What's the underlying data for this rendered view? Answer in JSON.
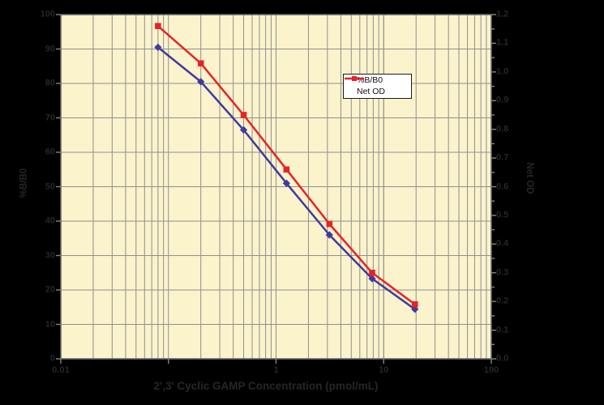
{
  "colors": {
    "page_bg": "#000000",
    "plot_bg": "#fbf3cc",
    "grid": "#8f8f8f",
    "plot_border": "#666666",
    "tick": "#858585",
    "axis_text": "#26262a",
    "legend_bg": "#ffffff",
    "legend_border": "#1a1a1a",
    "legend_text": "#111111"
  },
  "chart_data": {
    "type": "line",
    "xlabel": "2',3' Cyclic GAMP Concentration (pmol/mL)",
    "x_scale": "log",
    "x_range": [
      0.01,
      100
    ],
    "x_ticks": [
      {
        "value": 0.01,
        "label": "0.01"
      },
      {
        "value": 0.1,
        "label": ""
      },
      {
        "value": 1,
        "label": "1"
      },
      {
        "value": 10,
        "label": "10"
      },
      {
        "value": 100,
        "label": "100"
      }
    ],
    "left_axis": {
      "label": "%B/B0",
      "min": 0,
      "max": 100,
      "tick_step": 10,
      "tick_labels": [
        "0",
        "10",
        "20",
        "30",
        "40",
        "50",
        "60",
        "70",
        "80",
        "90",
        "100"
      ]
    },
    "right_axis": {
      "label": "Net OD",
      "min": 0,
      "max": 1.2,
      "tick_step": 0.1,
      "minor_tick_step": 0.05,
      "tick_labels": [
        "0.0",
        "0.1",
        "0.2",
        "0.3",
        "0.4",
        "0.5",
        "0.6",
        "0.7",
        "0.8",
        "0.9",
        "1.0",
        "1.1",
        "1.2"
      ]
    },
    "grid": "horizontal-major and vertical-log-minor",
    "legend_position": "inside top-center",
    "x": [
      0.08,
      0.2,
      0.5,
      1.25,
      3.13,
      7.81,
      19.5
    ],
    "series": [
      {
        "name": "%B/B0",
        "axis": "left",
        "color": "#413a9e",
        "marker": "diamond",
        "values": [
          90.5,
          80.5,
          66.5,
          51,
          36,
          23.3,
          14.4
        ]
      },
      {
        "name": "Net OD",
        "axis": "right",
        "color": "#e62329",
        "marker": "square",
        "values": [
          1.16,
          1.03,
          0.85,
          0.66,
          0.47,
          0.3,
          0.19
        ]
      }
    ]
  }
}
